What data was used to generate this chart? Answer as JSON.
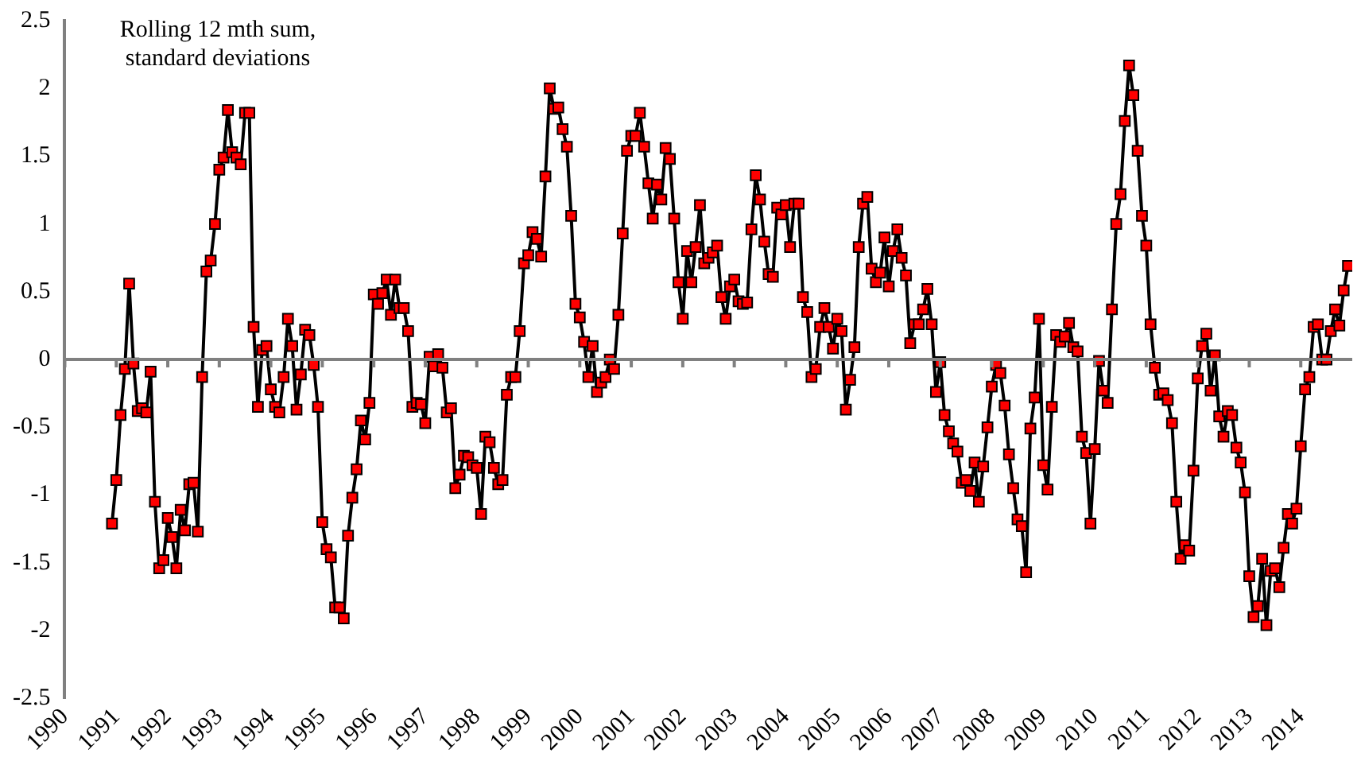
{
  "chart_data": {
    "type": "line",
    "annotations": [
      "Rolling 12 mth sum, standard deviations"
    ],
    "xlim": [
      "1990",
      "2015"
    ],
    "xticks": [
      "1990",
      "1991",
      "1992",
      "1993",
      "1994",
      "1995",
      "1996",
      "1997",
      "1998",
      "1999",
      "2000",
      "2001",
      "2002",
      "2003",
      "2004",
      "2005",
      "2006",
      "2007",
      "2008",
      "2009",
      "2010",
      "2011",
      "2012",
      "2013",
      "2014"
    ],
    "ylim": [
      -2.5,
      2.5
    ],
    "yticks": [
      -2.5,
      -2,
      -1.5,
      -1,
      -0.5,
      0,
      0.5,
      1,
      1.5,
      2,
      2.5
    ],
    "grid": false,
    "legend": false,
    "marker": "square",
    "line_style": "solid",
    "ref_lines": [
      {
        "axis": "y",
        "value": 0,
        "color": "#808080"
      }
    ],
    "series": [
      {
        "color": "#ff0000",
        "x": [
          "1990-12",
          "1991-01",
          "1991-02",
          "1991-03",
          "1991-04",
          "1991-05",
          "1991-06",
          "1991-07",
          "1991-08",
          "1991-09",
          "1991-10",
          "1991-11",
          "1991-12",
          "1992-01",
          "1992-02",
          "1992-03",
          "1992-04",
          "1992-05",
          "1992-06",
          "1992-07",
          "1992-08",
          "1992-09",
          "1992-10",
          "1992-11",
          "1992-12",
          "1993-01",
          "1993-02",
          "1993-03",
          "1993-04",
          "1993-05",
          "1993-06",
          "1993-07",
          "1993-08",
          "1993-09",
          "1993-10",
          "1993-11",
          "1993-12",
          "1994-01",
          "1994-02",
          "1994-03",
          "1994-04",
          "1994-05",
          "1994-06",
          "1994-07",
          "1994-08",
          "1994-09",
          "1994-10",
          "1994-11",
          "1994-12",
          "1995-01",
          "1995-02",
          "1995-03",
          "1995-04",
          "1995-05",
          "1995-06",
          "1995-07",
          "1995-08",
          "1995-09",
          "1995-10",
          "1995-11",
          "1995-12",
          "1996-01",
          "1996-02",
          "1996-03",
          "1996-04",
          "1996-05",
          "1996-06",
          "1996-07",
          "1996-08",
          "1996-09",
          "1996-10",
          "1996-11",
          "1996-12",
          "1997-01",
          "1997-02",
          "1997-03",
          "1997-04",
          "1997-05",
          "1997-06",
          "1997-07",
          "1997-08",
          "1997-09",
          "1997-10",
          "1997-11",
          "1997-12",
          "1998-01",
          "1998-02",
          "1998-03",
          "1998-04",
          "1998-05",
          "1998-06",
          "1998-07",
          "1998-08",
          "1998-09",
          "1998-10",
          "1998-11",
          "1998-12",
          "1999-01",
          "1999-02",
          "1999-03",
          "1999-04",
          "1999-05",
          "1999-06",
          "1999-07",
          "1999-08",
          "1999-09",
          "1999-10",
          "1999-11",
          "1999-12",
          "2000-01",
          "2000-02",
          "2000-03",
          "2000-04",
          "2000-05",
          "2000-06",
          "2000-07",
          "2000-08",
          "2000-09",
          "2000-10",
          "2000-11",
          "2000-12",
          "2001-01",
          "2001-02",
          "2001-03",
          "2001-04",
          "2001-05",
          "2001-06",
          "2001-07",
          "2001-08",
          "2001-09",
          "2001-10",
          "2001-11",
          "2001-12",
          "2002-01",
          "2002-02",
          "2002-03",
          "2002-04",
          "2002-05",
          "2002-06",
          "2002-07",
          "2002-08",
          "2002-09",
          "2002-10",
          "2002-11",
          "2002-12",
          "2003-01",
          "2003-02",
          "2003-03",
          "2003-04",
          "2003-05",
          "2003-06",
          "2003-07",
          "2003-08",
          "2003-09",
          "2003-10",
          "2003-11",
          "2003-12",
          "2004-01",
          "2004-02",
          "2004-03",
          "2004-04",
          "2004-05",
          "2004-06",
          "2004-07",
          "2004-08",
          "2004-09",
          "2004-10",
          "2004-11",
          "2004-12",
          "2005-01",
          "2005-02",
          "2005-03",
          "2005-04",
          "2005-05",
          "2005-06",
          "2005-07",
          "2005-08",
          "2005-09",
          "2005-10",
          "2005-11",
          "2005-12",
          "2006-01",
          "2006-02",
          "2006-03",
          "2006-04",
          "2006-05",
          "2006-06",
          "2006-07",
          "2006-08",
          "2006-09",
          "2006-10",
          "2006-11",
          "2006-12",
          "2007-01",
          "2007-02",
          "2007-03",
          "2007-04",
          "2007-05",
          "2007-06",
          "2007-07",
          "2007-08",
          "2007-09",
          "2007-10",
          "2007-11",
          "2007-12",
          "2008-01",
          "2008-02",
          "2008-03",
          "2008-04",
          "2008-05",
          "2008-06",
          "2008-07",
          "2008-08",
          "2008-09",
          "2008-10",
          "2008-11",
          "2008-12",
          "2009-01",
          "2009-02",
          "2009-03",
          "2009-04",
          "2009-05",
          "2009-06",
          "2009-07",
          "2009-08",
          "2009-09",
          "2009-10",
          "2009-11",
          "2009-12",
          "2010-01",
          "2010-02",
          "2010-03",
          "2010-04",
          "2010-05",
          "2010-06",
          "2010-07",
          "2010-08",
          "2010-09",
          "2010-10",
          "2010-11",
          "2010-12",
          "2011-01",
          "2011-02",
          "2011-03",
          "2011-04",
          "2011-05",
          "2011-06",
          "2011-07",
          "2011-08",
          "2011-09",
          "2011-10",
          "2011-11",
          "2011-12",
          "2012-01",
          "2012-02",
          "2012-03",
          "2012-04",
          "2012-05",
          "2012-06",
          "2012-07",
          "2012-08",
          "2012-09",
          "2012-10",
          "2012-11",
          "2012-12",
          "2013-01",
          "2013-02",
          "2013-03",
          "2013-04",
          "2013-05",
          "2013-06",
          "2013-07",
          "2013-08",
          "2013-09",
          "2013-10",
          "2013-11",
          "2013-12",
          "2014-01",
          "2014-02",
          "2014-03",
          "2014-04",
          "2014-05",
          "2014-06",
          "2014-07",
          "2014-08",
          "2014-09",
          "2014-10",
          "2014-11",
          "2014-12"
        ],
        "values": [
          -1.21,
          -0.89,
          -0.41,
          -0.07,
          0.56,
          -0.03,
          -0.38,
          -0.36,
          -0.39,
          -0.09,
          -1.05,
          -1.54,
          -1.48,
          -1.17,
          -1.31,
          -1.54,
          -1.11,
          -1.26,
          -0.92,
          -0.91,
          -1.27,
          -0.13,
          0.65,
          0.73,
          1.0,
          1.4,
          1.49,
          1.84,
          1.53,
          1.49,
          1.44,
          1.82,
          1.82,
          0.24,
          -0.35,
          0.07,
          0.1,
          -0.22,
          -0.35,
          -0.39,
          -0.13,
          0.3,
          0.1,
          -0.37,
          -0.11,
          0.22,
          0.18,
          -0.04,
          -0.35,
          -1.2,
          -1.4,
          -1.46,
          -1.83,
          -1.83,
          -1.91,
          -1.3,
          -1.02,
          -0.81,
          -0.45,
          -0.59,
          -0.32,
          0.48,
          0.41,
          0.49,
          0.59,
          0.33,
          0.59,
          0.38,
          0.38,
          0.21,
          -0.35,
          -0.32,
          -0.33,
          -0.47,
          0.02,
          -0.05,
          0.04,
          -0.06,
          -0.39,
          -0.36,
          -0.95,
          -0.85,
          -0.71,
          -0.72,
          -0.78,
          -0.8,
          -1.14,
          -0.57,
          -0.61,
          -0.8,
          -0.92,
          -0.89,
          -0.26,
          -0.13,
          -0.13,
          0.21,
          0.71,
          0.77,
          0.94,
          0.89,
          0.76,
          1.35,
          2.0,
          1.85,
          1.86,
          1.7,
          1.57,
          1.06,
          0.41,
          0.31,
          0.13,
          -0.13,
          0.1,
          -0.24,
          -0.17,
          -0.13,
          0.0,
          -0.07,
          0.33,
          0.93,
          1.54,
          1.65,
          1.65,
          1.82,
          1.57,
          1.3,
          1.04,
          1.29,
          1.18,
          1.56,
          1.48,
          1.04,
          0.57,
          0.3,
          0.8,
          0.57,
          0.83,
          1.14,
          0.71,
          0.75,
          0.79,
          0.84,
          0.46,
          0.3,
          0.54,
          0.59,
          0.43,
          0.41,
          0.42,
          0.96,
          1.36,
          1.18,
          0.87,
          0.63,
          0.61,
          1.12,
          1.07,
          1.14,
          0.83,
          1.15,
          1.15,
          0.46,
          0.35,
          -0.13,
          -0.07,
          0.24,
          0.38,
          0.24,
          0.08,
          0.3,
          0.21,
          -0.37,
          -0.15,
          0.09,
          0.83,
          1.15,
          1.2,
          0.67,
          0.57,
          0.64,
          0.9,
          0.54,
          0.8,
          0.96,
          0.75,
          0.62,
          0.12,
          0.26,
          0.26,
          0.37,
          0.52,
          0.26,
          -0.24,
          -0.02,
          -0.41,
          -0.53,
          -0.62,
          -0.68,
          -0.91,
          -0.89,
          -0.97,
          -0.76,
          -1.05,
          -0.79,
          -0.5,
          -0.2,
          -0.04,
          -0.1,
          -0.34,
          -0.7,
          -0.95,
          -1.18,
          -1.23,
          -1.57,
          -0.51,
          -0.28,
          0.3,
          -0.78,
          -0.96,
          -0.35,
          0.18,
          0.13,
          0.17,
          0.27,
          0.09,
          0.06,
          -0.57,
          -0.69,
          -1.21,
          -0.66,
          -0.01,
          -0.23,
          -0.32,
          0.37,
          1.0,
          1.22,
          1.76,
          2.17,
          1.95,
          1.54,
          1.06,
          0.84,
          0.26,
          -0.06,
          -0.26,
          -0.25,
          -0.3,
          -0.47,
          -1.05,
          -1.47,
          -1.37,
          -1.41,
          -0.82,
          -0.14,
          0.1,
          0.19,
          -0.23,
          0.03,
          -0.42,
          -0.57,
          -0.38,
          -0.41,
          -0.65,
          -0.76,
          -0.98,
          -1.6,
          -1.9,
          -1.82,
          -1.47,
          -1.96,
          -1.56,
          -1.54,
          -1.68,
          -1.39,
          -1.14,
          -1.21,
          -1.1,
          -0.64,
          -0.22,
          -0.13,
          0.24,
          0.26,
          0.0,
          0.0,
          0.21,
          0.37,
          0.25,
          0.51,
          0.69
        ]
      }
    ]
  }
}
